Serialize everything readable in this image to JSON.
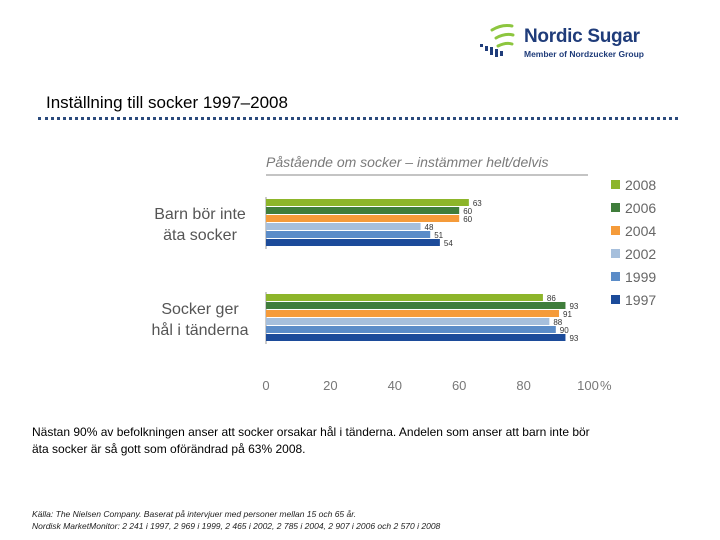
{
  "logo": {
    "name": "Nordic Sugar",
    "tagline": "Member of Nordzucker Group",
    "colors": {
      "green": "#8dc63f",
      "blue": "#1f3c7a"
    }
  },
  "page_title": "Inställning till socker 1997–2008",
  "summary": "Nästan 90% av befolkningen anser att socker orsakar hål i tänderna. Andelen som anser att barn inte bör äta socker är så gott som oförändrad på 63% 2008.",
  "source": {
    "line1": "Källa: The Nielsen Company. Baserat på intervjuer med personer mellan 15 och 65 år.",
    "line2": "Nordisk MarketMonitor: 2 241 i 1997, 2 969 i 1999, 2 465 i 2002, 2 785 i 2004, 2 907 i 2006 och 2 570 i 2008"
  },
  "chart_data": {
    "type": "bar",
    "orientation": "horizontal",
    "title": "Påstående om socker – instämmer helt/delvis",
    "categories": [
      {
        "line1": "Barn bör inte",
        "line2": "äta socker"
      },
      {
        "line1": "Socker ger",
        "line2": "hål i tänderna"
      }
    ],
    "series": [
      {
        "name": "2008",
        "color": "#8db52a",
        "values": [
          63,
          86
        ]
      },
      {
        "name": "2006",
        "color": "#3f7d3b",
        "values": [
          60,
          93
        ]
      },
      {
        "name": "2004",
        "color": "#f59b3a",
        "values": [
          60,
          91
        ]
      },
      {
        "name": "2002",
        "color": "#a6bfdc",
        "values": [
          48,
          88
        ]
      },
      {
        "name": "1999",
        "color": "#5b8cc8",
        "values": [
          51,
          90
        ]
      },
      {
        "name": "1997",
        "color": "#1c4b9a",
        "values": [
          54,
          93
        ]
      }
    ],
    "xlim": [
      0,
      100
    ],
    "xticks": [
      "0",
      "20",
      "40",
      "60",
      "80",
      "100"
    ],
    "xunit": "%",
    "legend": "right",
    "grid": false
  }
}
